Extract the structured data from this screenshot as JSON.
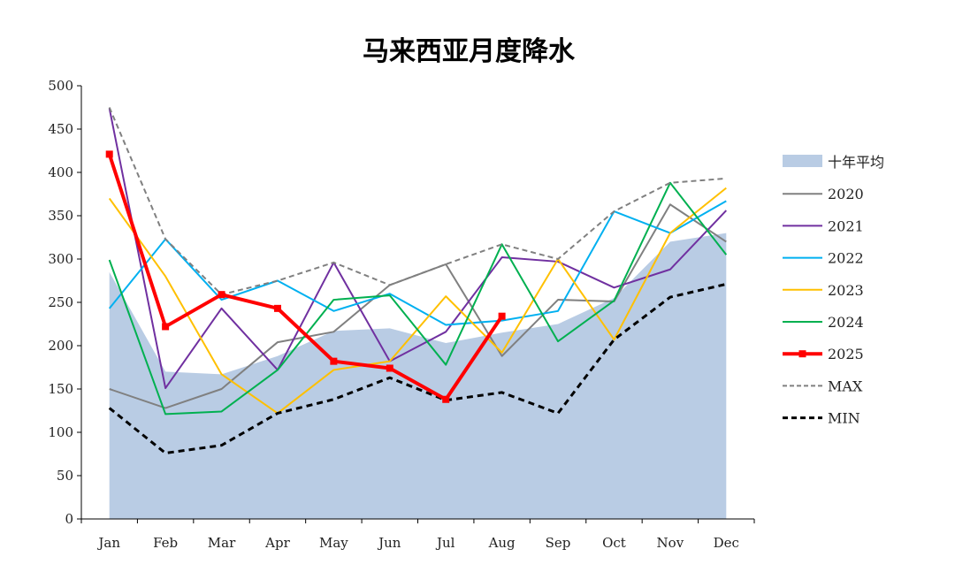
{
  "chart_data": {
    "type": "line",
    "title": "马来西亚月度降水",
    "xlabel": "",
    "ylabel": "",
    "categories": [
      "Jan",
      "Feb",
      "Mar",
      "Apr",
      "May",
      "Jun",
      "Jul",
      "Aug",
      "Sep",
      "Oct",
      "Nov",
      "Dec"
    ],
    "ylim": [
      0,
      500
    ],
    "yticks": [
      0,
      50,
      100,
      150,
      200,
      250,
      300,
      350,
      400,
      450,
      500
    ],
    "grid": false,
    "legend_position": "right",
    "area": {
      "name": "十年平均",
      "color": "#b9cce4",
      "values": [
        285,
        170,
        167,
        188,
        217,
        220,
        203,
        215,
        225,
        255,
        320,
        330
      ]
    },
    "series": [
      {
        "name": "2020",
        "color": "#808080",
        "style": "solid",
        "width": 2,
        "values": [
          150,
          128,
          150,
          204,
          216,
          270,
          294,
          188,
          253,
          251,
          363,
          320
        ]
      },
      {
        "name": "2021",
        "color": "#7030a0",
        "style": "solid",
        "width": 2,
        "values": [
          474,
          151,
          243,
          172,
          296,
          182,
          216,
          302,
          297,
          267,
          288,
          356
        ]
      },
      {
        "name": "2022",
        "color": "#00b0f0",
        "style": "solid",
        "width": 2,
        "values": [
          243,
          323,
          253,
          275,
          240,
          260,
          224,
          229,
          240,
          355,
          330,
          367
        ]
      },
      {
        "name": "2023",
        "color": "#ffc000",
        "style": "solid",
        "width": 2,
        "values": [
          370,
          280,
          167,
          122,
          172,
          182,
          257,
          192,
          300,
          207,
          330,
          382
        ]
      },
      {
        "name": "2024",
        "color": "#00b050",
        "style": "solid",
        "width": 2,
        "values": [
          299,
          121,
          124,
          172,
          253,
          258,
          178,
          317,
          205,
          252,
          388,
          305
        ]
      },
      {
        "name": "2025",
        "color": "#ff0000",
        "style": "solid",
        "width": 4,
        "markers": true,
        "values": [
          421,
          222,
          259,
          243,
          182,
          174,
          138,
          234,
          null,
          null,
          null,
          null
        ]
      },
      {
        "name": "MAX",
        "color": "#808080",
        "style": "dashed",
        "width": 2,
        "values": [
          475,
          323,
          259,
          275,
          296,
          270,
          294,
          317,
          300,
          355,
          388,
          393
        ]
      },
      {
        "name": "MIN",
        "color": "#000000",
        "style": "dashed",
        "width": 3,
        "values": [
          128,
          76,
          85,
          122,
          138,
          163,
          137,
          146,
          122,
          207,
          256,
          271
        ]
      }
    ]
  }
}
